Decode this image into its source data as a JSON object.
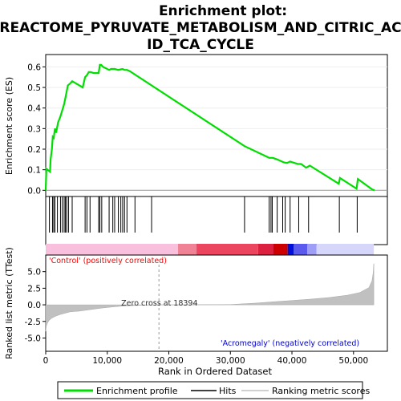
{
  "chart_data": {
    "type": "line",
    "title": "Enrichment plot:\nREACTOME_PYRUVATE_METABOLISM_AND_CITRIC_AC\nID_TCA_CYCLE",
    "title_lines": [
      "Enrichment plot:",
      "REACTOME_PYRUVATE_METABOLISM_AND_CITRIC_AC",
      "ID_TCA_CYCLE"
    ],
    "xlabel": "Rank in Ordered Dataset",
    "es_panel": {
      "ylabel": "Enrichment score (ES)",
      "ylim": [
        -0.03,
        0.66
      ],
      "yticks": [
        0.0,
        0.1,
        0.2,
        0.3,
        0.4,
        0.5,
        0.6
      ],
      "ytick_labels": [
        "0.0",
        "0.1",
        "0.2",
        "0.3",
        "0.4",
        "0.5",
        "0.6"
      ],
      "series": [
        {
          "name": "Enrichment profile",
          "color": "#00dd00",
          "x": [
            0,
            100,
            700,
            800,
            1000,
            1150,
            1300,
            1500,
            1700,
            2000,
            2400,
            2700,
            3000,
            3200,
            3400,
            3600,
            3800,
            4000,
            4300,
            4600,
            6000,
            6400,
            6700,
            7000,
            7300,
            7800,
            8600,
            8800,
            9000,
            9300,
            10300,
            10600,
            10900,
            11200,
            11800,
            12200,
            12500,
            12800,
            13200,
            13600,
            32300,
            36300,
            36600,
            36900,
            37600,
            38500,
            38800,
            39200,
            39700,
            40200,
            41000,
            41500,
            42300,
            42900,
            47600,
            47800,
            50500,
            50700,
            53000,
            53400
          ],
          "y": [
            0.0,
            0.105,
            0.09,
            0.15,
            0.2,
            0.26,
            0.255,
            0.3,
            0.28,
            0.33,
            0.36,
            0.39,
            0.42,
            0.45,
            0.48,
            0.51,
            0.515,
            0.52,
            0.53,
            0.525,
            0.5,
            0.55,
            0.56,
            0.575,
            0.575,
            0.57,
            0.57,
            0.61,
            0.61,
            0.6,
            0.585,
            0.59,
            0.59,
            0.59,
            0.585,
            0.588,
            0.59,
            0.585,
            0.585,
            0.58,
            0.215,
            0.158,
            0.158,
            0.158,
            0.15,
            0.138,
            0.135,
            0.133,
            0.14,
            0.135,
            0.128,
            0.128,
            0.11,
            0.12,
            0.032,
            0.06,
            0.008,
            0.055,
            0.005,
            0.0
          ]
        }
      ]
    },
    "hits": {
      "name": "Hits",
      "x": [
        600,
        1100,
        1300,
        1500,
        1900,
        2400,
        2700,
        3000,
        3200,
        3400,
        3700,
        4300,
        6400,
        6700,
        7200,
        8600,
        8800,
        9100,
        10300,
        10900,
        11200,
        11800,
        12200,
        12500,
        12800,
        13200,
        14500,
        17200,
        32300,
        36300,
        36600,
        36800,
        37600,
        38500,
        38900,
        39700,
        41100,
        42700,
        47700,
        50600
      ]
    },
    "color_bar": {
      "segments": [
        {
          "from": 0,
          "to": 21500,
          "color": "#f9c0de"
        },
        {
          "from": 21500,
          "to": 24500,
          "color": "#f08296"
        },
        {
          "from": 24500,
          "to": 34500,
          "color": "#ec4560"
        },
        {
          "from": 34500,
          "to": 37000,
          "color": "#dc2040"
        },
        {
          "from": 37000,
          "to": 39300,
          "color": "#cc0000"
        },
        {
          "from": 39300,
          "to": 40300,
          "color": "#0010d8"
        },
        {
          "from": 40300,
          "to": 42500,
          "color": "#5a5aee"
        },
        {
          "from": 42500,
          "to": 44000,
          "color": "#9e9ef6"
        },
        {
          "from": 44000,
          "to": 53300,
          "color": "#d6d6fa"
        }
      ]
    },
    "metric_panel": {
      "name": "Ranking metric scores",
      "ylabel": "Ranked list metric (TTest)",
      "ylim": [
        -7.0,
        7.5
      ],
      "yticks": [
        -5.0,
        -2.5,
        0.0,
        2.5,
        5.0
      ],
      "ytick_labels": [
        "-5.0",
        "-2.5",
        "0.0",
        "2.5",
        "5.0"
      ],
      "color": "#c0c0c0",
      "x": [
        0,
        100,
        300,
        600,
        1000,
        1500,
        2200,
        3000,
        4000,
        5500,
        7000,
        9000,
        11000,
        13000,
        15000,
        18394,
        30000,
        34000,
        37000,
        40000,
        43000,
        46000,
        49000,
        51000,
        52500,
        53000,
        53200,
        53300
      ],
      "y": [
        -4.0,
        -3.2,
        -2.7,
        -2.3,
        -2.0,
        -1.75,
        -1.5,
        -1.3,
        -1.05,
        -0.95,
        -0.75,
        -0.5,
        -0.3,
        -0.15,
        -0.08,
        0.0,
        0.05,
        0.25,
        0.45,
        0.65,
        0.85,
        1.1,
        1.45,
        1.85,
        2.6,
        3.6,
        4.8,
        6.2
      ],
      "positive_label": "'Control' (positively correlated)",
      "positive_color": "#ff0000",
      "negative_label": "'Acromegaly' (negatively correlated)",
      "negative_color": "#0000cc",
      "zero_cross_label": "Zero cross at 18394",
      "zero_cross_x": 18394
    },
    "xlim": [
      0,
      55500
    ],
    "xticks": [
      0,
      10000,
      20000,
      30000,
      40000,
      50000
    ],
    "xtick_labels": [
      "0",
      "10,000",
      "20,000",
      "30,000",
      "40,000",
      "50,000"
    ],
    "legend": {
      "placement": "bottom",
      "items": [
        {
          "label": "Enrichment profile",
          "color": "#00dd00",
          "style": "thick-line"
        },
        {
          "label": "Hits",
          "color": "#000000",
          "style": "line"
        },
        {
          "label": "Ranking metric scores",
          "color": "#c0c0c0",
          "style": "line"
        }
      ]
    }
  }
}
